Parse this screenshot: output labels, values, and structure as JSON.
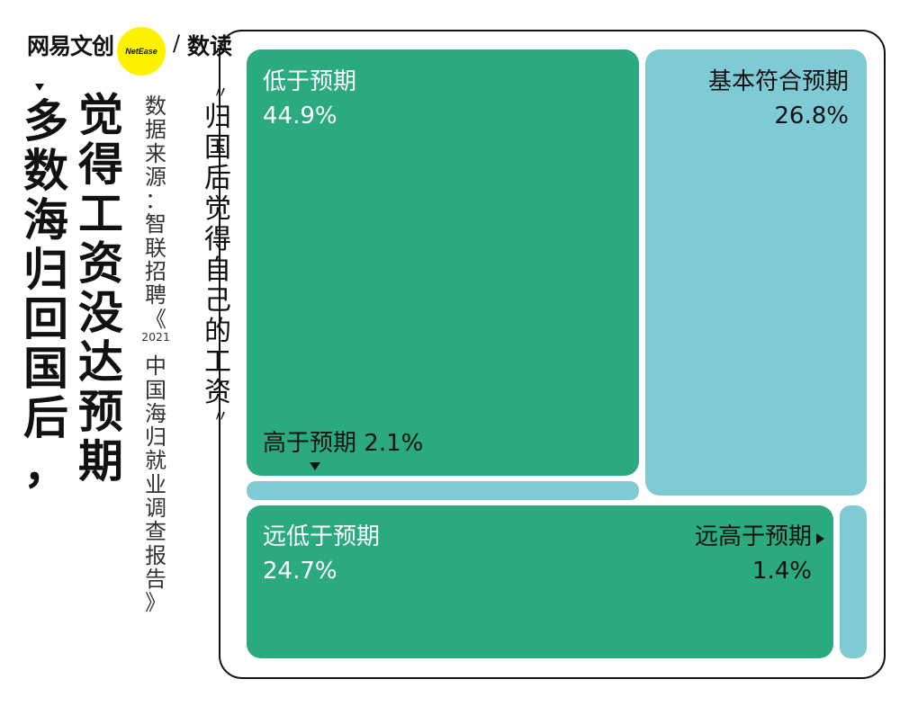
{
  "brand": {
    "name": "网易文创",
    "badge": "NetEase",
    "slash": "/",
    "sub": "数读"
  },
  "headline": {
    "line1": "多数海归回国后，",
    "line2": "觉得工资没达预期"
  },
  "source": "数据来源：智联招聘《2021中国海归就业调查报告》",
  "chart_caption": "归国后觉得自己的工资",
  "colors": {
    "green": "#2ba981",
    "blue": "#7ecad5",
    "frame": "#111111"
  },
  "chart_data": {
    "type": "treemap",
    "unit": "%",
    "items": [
      {
        "label": "低于预期",
        "value": 44.9,
        "value_text": "44.9%",
        "color": "green"
      },
      {
        "label": "基本符合预期",
        "value": 26.8,
        "value_text": "26.8%",
        "color": "blue"
      },
      {
        "label": "远低于预期",
        "value": 24.7,
        "value_text": "24.7%",
        "color": "green"
      },
      {
        "label": "高于预期",
        "value": 2.1,
        "value_text": "2.1%",
        "color": "blue"
      },
      {
        "label": "远高于预期",
        "value": 1.4,
        "value_text": "1.4%",
        "color": "blue"
      }
    ]
  }
}
